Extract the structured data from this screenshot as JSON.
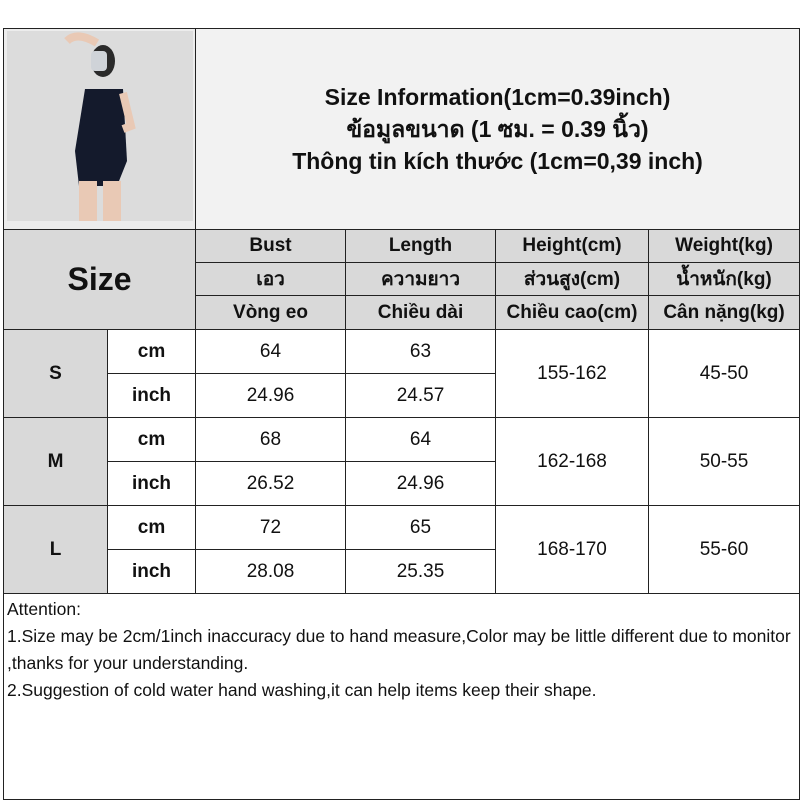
{
  "title_lines": [
    "Size Information(1cm=0.39inch)",
    "ข้อมูลขนาด (1 ซม. = 0.39 นิ้ว)",
    "Thông tin kích thước (1cm=0,39 inch)"
  ],
  "size_label": "Size",
  "headers": [
    [
      "Bust",
      "Length",
      "Height(cm)",
      "Weight(kg)"
    ],
    [
      "เอว",
      "ความยาว",
      "ส่วนสูง(cm)",
      "น้ำหนัก(kg)"
    ],
    [
      "Vòng eo",
      "Chiều dài",
      "Chiều cao(cm)",
      "Cân nặng(kg)"
    ]
  ],
  "rows": [
    {
      "size": "S",
      "cm_label": "cm",
      "inch_label": "inch",
      "bust_cm": "64",
      "length_cm": "63",
      "bust_inch": "24.96",
      "length_inch": "24.57",
      "height": "155-162",
      "weight": "45-50"
    },
    {
      "size": "M",
      "cm_label": "cm",
      "inch_label": "inch",
      "bust_cm": "68",
      "length_cm": "64",
      "bust_inch": "26.52",
      "length_inch": "24.96",
      "height": "162-168",
      "weight": "50-55"
    },
    {
      "size": "L",
      "cm_label": "cm",
      "inch_label": "inch",
      "bust_cm": "72",
      "length_cm": "65",
      "bust_inch": "28.08",
      "length_inch": "25.35",
      "height": "168-170",
      "weight": "55-60"
    }
  ],
  "attention": {
    "heading": "Attention:",
    "lines": [
      "1.Size may be 2cm/1inch inaccuracy due to hand measure,Color may be little different due to monitor ,thanks for your understanding.",
      "2.Suggestion of cold water hand washing,it can help items keep their shape."
    ]
  },
  "colors": {
    "header_bg": "#d9d9d9",
    "title_bg": "#f2f2f2",
    "garment": "#141a2c"
  }
}
